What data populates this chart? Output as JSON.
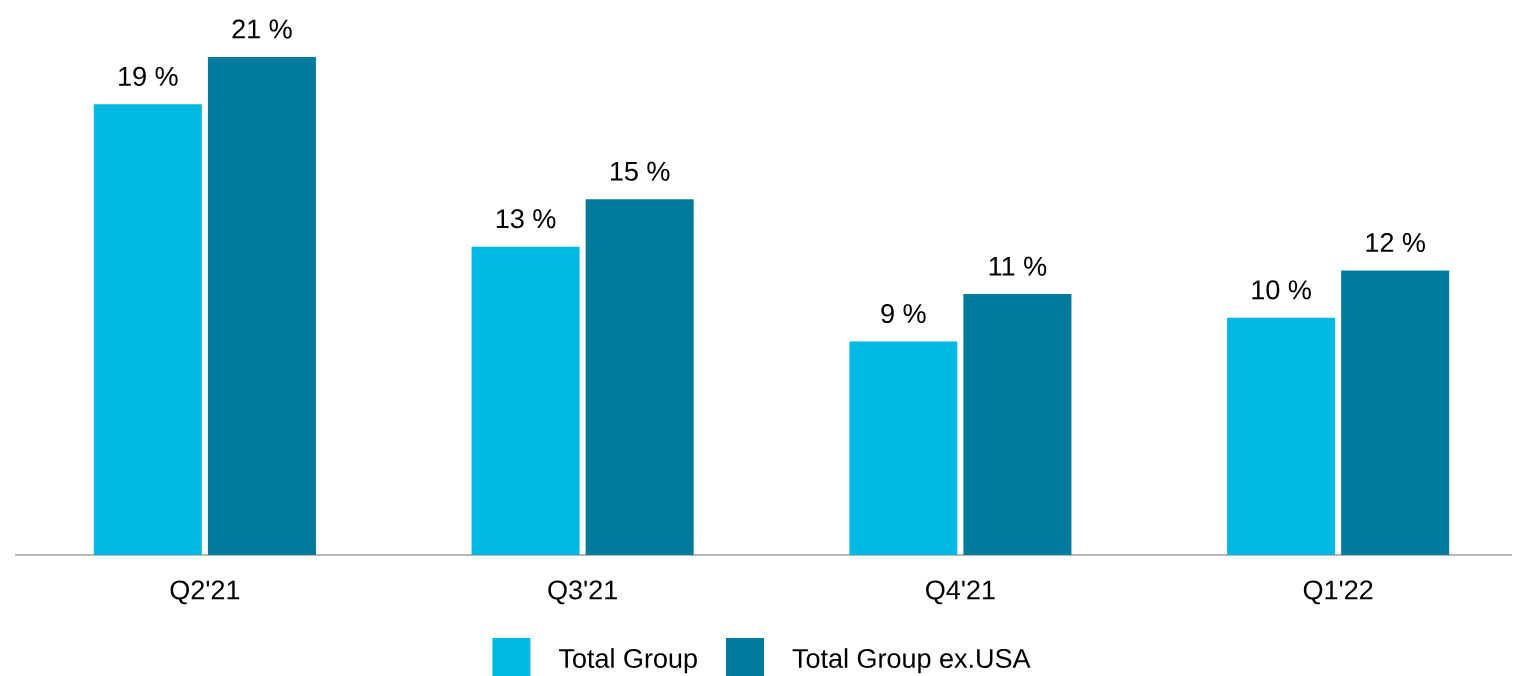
{
  "chart_data": {
    "type": "bar",
    "categories": [
      "Q2'21",
      "Q3'21",
      "Q4'21",
      "Q1'22"
    ],
    "series": [
      {
        "name": "Total Group",
        "color": "#00b9e3",
        "values": [
          19,
          13,
          9,
          10
        ],
        "value_labels": [
          "19 %",
          "13 %",
          "9 %",
          "10 %"
        ]
      },
      {
        "name": "Total Group ex.USA",
        "color": "#007b9c",
        "values": [
          21,
          15,
          11,
          12
        ],
        "value_labels": [
          "21 %",
          "15 %",
          "11 %",
          "12 %"
        ]
      }
    ],
    "legend": "bottom",
    "grid": false
  }
}
